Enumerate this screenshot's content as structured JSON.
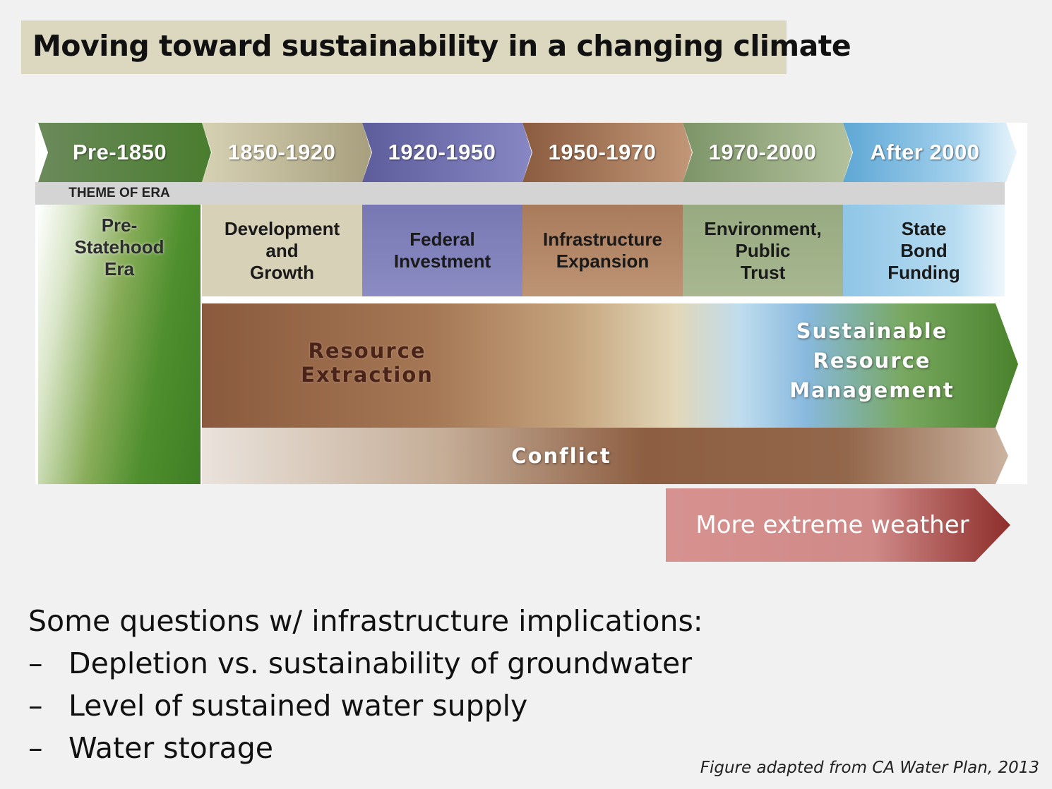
{
  "title": "Moving toward sustainability in a changing climate",
  "eras": [
    {
      "label": "Pre-1850",
      "color": "#4a7d2f"
    },
    {
      "label": "1850-1920",
      "color": "#b5ad8a"
    },
    {
      "label": "1920-1950",
      "color": "#6f6fae"
    },
    {
      "label": "1950-1970",
      "color": "#9b6a4c"
    },
    {
      "label": "1970-2000",
      "color": "#8ea27a"
    },
    {
      "label": "After 2000",
      "color": "#7ab7dc"
    }
  ],
  "theme_header": "THEME OF ERA",
  "themes": [
    {
      "label": "Pre-\nStatehood\nEra"
    },
    {
      "label": "Development\nand\nGrowth",
      "color": "#d4cfb5"
    },
    {
      "label": "Federal\nInvestment",
      "color": "#8686bd"
    },
    {
      "label": "Infrastructure\nExpansion",
      "color": "#b38767"
    },
    {
      "label": "Environment,\nPublic\nTrust",
      "color": "#a1b28a"
    },
    {
      "label": "State\nBond\nFunding",
      "color": "#a7d3ee"
    }
  ],
  "bands": {
    "resource_extraction": "Resource\nExtraction",
    "sustainable": "Sustainable\nResource\nManagement",
    "conflict": "Conflict"
  },
  "weather_label": "More extreme weather",
  "questions": {
    "heading": "Some questions w/ infrastructure implications:",
    "dash": "–",
    "items": [
      "Depletion vs. sustainability of groundwater",
      "Level of sustained water supply",
      "Water storage"
    ]
  },
  "caption": "Figure adapted from CA Water Plan, 2013"
}
